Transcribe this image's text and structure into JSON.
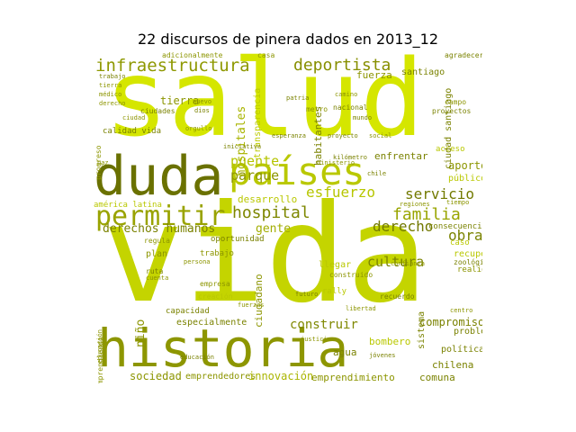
{
  "title": "22 discursos de pinera dados en 2013_12",
  "colors": {
    "bright": "#cfe000",
    "lime": "#bccc00",
    "olive": "#8b9400",
    "dark": "#666e00",
    "pale": "#a7b100"
  },
  "words": [
    {
      "text": "salud",
      "color": "#d5e600"
    },
    {
      "text": "vida",
      "color": "#c4d400"
    },
    {
      "text": "historia",
      "color": "#8d9600"
    },
    {
      "text": "duda",
      "color": "#6a7100"
    },
    {
      "text": "países",
      "color": "#b9c800"
    },
    {
      "text": "permitir",
      "color": "#99a300"
    },
    {
      "text": "infraestructura",
      "color": "#8e9800"
    },
    {
      "text": "deportista",
      "color": "#878f00"
    },
    {
      "text": "hospital",
      "color": "#7e8700"
    },
    {
      "text": "familia",
      "color": "#99a500"
    },
    {
      "text": "servicio",
      "color": "#727a00"
    },
    {
      "text": "esfuerzo",
      "color": "#b7c600"
    },
    {
      "text": "puente",
      "color": "#b5c400"
    },
    {
      "text": "parque",
      "color": "#8c9500"
    },
    {
      "text": "derecho",
      "color": "#727900"
    },
    {
      "text": "obra",
      "color": "#7a8300"
    },
    {
      "text": "cultura",
      "color": "#7b8400"
    },
    {
      "text": "derechos humanos",
      "color": "#7a8200"
    },
    {
      "text": "gente",
      "color": "#a2ad00"
    },
    {
      "text": "deporte",
      "color": "#a9b400"
    },
    {
      "text": "niño",
      "color": "#8b9400"
    },
    {
      "text": "ciudadano",
      "color": "#8c9500"
    },
    {
      "text": "construir",
      "color": "#7f8800"
    },
    {
      "text": "compromiso",
      "color": "#7a8200"
    },
    {
      "text": "sociedad",
      "color": "#8c9500"
    },
    {
      "text": "emprendedores",
      "color": "#8c9500"
    },
    {
      "text": "innovación",
      "color": "#aab500"
    },
    {
      "text": "emprendimiento",
      "color": "#8c9500"
    },
    {
      "text": "chilena",
      "color": "#7a8200"
    },
    {
      "text": "tierra",
      "color": "#8c9500"
    },
    {
      "text": "hospitales",
      "color": "#a9b400"
    },
    {
      "text": "transparencia",
      "color": "#bccb00"
    },
    {
      "text": "habitantes",
      "color": "#7a8200"
    },
    {
      "text": "fuerza",
      "color": "#8c9500"
    },
    {
      "text": "santiago",
      "color": "#7a8200"
    },
    {
      "text": "aporte",
      "color": "#8c9500"
    },
    {
      "text": "público",
      "color": "#b9c800"
    },
    {
      "text": "enfrentar",
      "color": "#7a8200"
    },
    {
      "text": "acceso",
      "color": "#b9c800"
    },
    {
      "text": "desarrollo",
      "color": "#b9c800"
    },
    {
      "text": "agua",
      "color": "#7a8200"
    },
    {
      "text": "comuna",
      "color": "#7a8200"
    },
    {
      "text": "bombero",
      "color": "#b9c800"
    },
    {
      "text": "política",
      "color": "#7a8200"
    },
    {
      "text": "vivienda",
      "color": "#8c9500"
    },
    {
      "text": "especialmente",
      "color": "#7a8200"
    },
    {
      "text": "plan",
      "color": "#8c9500"
    },
    {
      "text": "trabajo",
      "color": "#8c9500"
    },
    {
      "text": "llegar",
      "color": "#b9c800"
    },
    {
      "text": "rally",
      "color": "#b9c800"
    },
    {
      "text": "recuperar",
      "color": "#b9c800"
    },
    {
      "text": "zoológico",
      "color": "#7a8200"
    },
    {
      "text": "realidad",
      "color": "#8c9500"
    },
    {
      "text": "sistema",
      "color": "#7a8200"
    },
    {
      "text": "problema",
      "color": "#7a8200"
    },
    {
      "text": "ciudad santiago",
      "color": "#7a8200"
    },
    {
      "text": "capacidad",
      "color": "#7a8200"
    },
    {
      "text": "oportunidad",
      "color": "#7a8200"
    },
    {
      "text": "calidad vida",
      "color": "#7a8200"
    },
    {
      "text": "ciudades",
      "color": "#7a8200"
    },
    {
      "text": "nacional",
      "color": "#7a8200"
    },
    {
      "text": "metro",
      "color": "#8c9500"
    },
    {
      "text": "adicionalmente",
      "color": "#8c9500"
    },
    {
      "text": "casa",
      "color": "#8c9500"
    },
    {
      "text": "consecuencia",
      "color": "#7a8200"
    },
    {
      "text": "caso",
      "color": "#b9c800"
    },
    {
      "text": "recuerdo",
      "color": "#7a8200"
    },
    {
      "text": "regiones",
      "color": "#8c9500"
    },
    {
      "text": "américa latina",
      "color": "#b9c800"
    },
    {
      "text": "progreso",
      "color": "#8c9500"
    },
    {
      "text": "emprendiendo",
      "color": "#8c9500"
    },
    {
      "text": "educación",
      "color": "#8c9500"
    },
    {
      "text": "regula",
      "color": "#8c9500"
    },
    {
      "text": "ruta",
      "color": "#7a8200"
    },
    {
      "text": "cuenta",
      "color": "#8c9500"
    },
    {
      "text": "ministerio",
      "color": "#8c9500"
    },
    {
      "text": "construido",
      "color": "#8c9500"
    },
    {
      "text": "proyectos",
      "color": "#7a8200"
    },
    {
      "text": "campo",
      "color": "#8c9500"
    },
    {
      "text": "agradecer",
      "color": "#7a8200"
    },
    {
      "text": "kilómetro",
      "color": "#7a8200"
    },
    {
      "text": "empresa",
      "color": "#8c9500"
    },
    {
      "text": "creación",
      "color": "#b9c800"
    },
    {
      "text": "nuevo",
      "color": "#8c9500"
    },
    {
      "text": "ciudad",
      "color": "#8c9500"
    },
    {
      "text": "médico",
      "color": "#8c9500"
    },
    {
      "text": "tierra",
      "color": "#8c9500"
    },
    {
      "text": "trabajo",
      "color": "#7a8200"
    },
    {
      "text": "derecho",
      "color": "#8c9500"
    },
    {
      "text": "dios",
      "color": "#7a8200"
    },
    {
      "text": "paz",
      "color": "#8c9500"
    },
    {
      "text": "chile",
      "color": "#7a8200"
    },
    {
      "text": "camino",
      "color": "#8c9500"
    },
    {
      "text": "educación",
      "color": "#7a8200"
    },
    {
      "text": "libertad",
      "color": "#8c9500"
    },
    {
      "text": "justicia",
      "color": "#8c9500"
    },
    {
      "text": "jóvenes",
      "color": "#7a8200"
    },
    {
      "text": "persona",
      "color": "#8c9500"
    },
    {
      "text": "patria",
      "color": "#7a8200"
    },
    {
      "text": "orgullo",
      "color": "#8c9500"
    },
    {
      "text": "mundo",
      "color": "#7a8200"
    },
    {
      "text": "social",
      "color": "#8c9500"
    },
    {
      "text": "fuerzas",
      "color": "#8c9500"
    },
    {
      "text": "esperanza",
      "color": "#7a8200"
    },
    {
      "text": "confianza",
      "color": "#8c9500"
    },
    {
      "text": "futuro",
      "color": "#7a8200"
    },
    {
      "text": "tiempo",
      "color": "#8c9500"
    },
    {
      "text": "proyecto",
      "color": "#7a8200"
    },
    {
      "text": "centro",
      "color": "#8c9500"
    },
    {
      "text": "iniciativa",
      "color": "#7a8200"
    }
  ]
}
